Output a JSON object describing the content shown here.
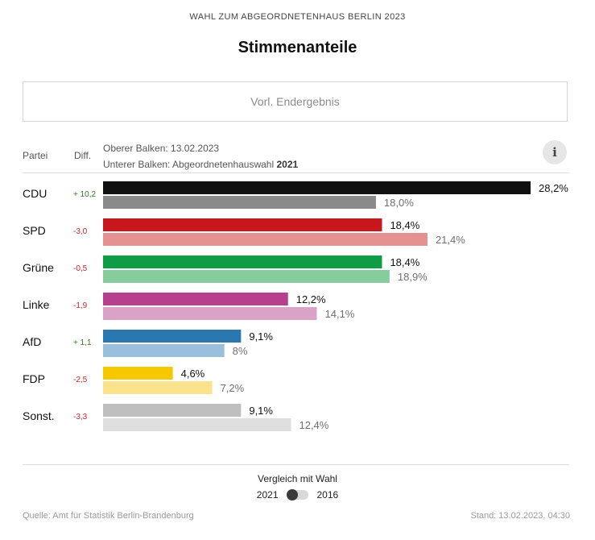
{
  "header": {
    "supertitle": "WAHL ZUM ABGEORDNETENHAUS BERLIN 2023",
    "title": "Stimmenanteile",
    "status": "Vorl. Endergebnis"
  },
  "columns": {
    "party": "Partei",
    "diff": "Diff."
  },
  "legend": {
    "upper": "Oberer Balken: 13.02.2023",
    "lower_prefix": "Unterer Balken: Abgeordnetenhauswahl ",
    "lower_year": "2021"
  },
  "info_label": "i",
  "colors": {
    "positive_diff": "#2e7d1e",
    "negative_diff": "#c62828"
  },
  "chart_data": {
    "type": "bar",
    "orientation": "horizontal",
    "title": "Stimmenanteile",
    "unit": "%",
    "categories": [
      "CDU",
      "SPD",
      "Grüne",
      "Linke",
      "AfD",
      "FDP",
      "Sonst."
    ],
    "series": [
      {
        "name": "13.02.2023",
        "values": [
          28.2,
          18.4,
          18.4,
          12.2,
          9.1,
          4.6,
          9.1
        ],
        "labels": [
          "28,2%",
          "18,4%",
          "18,4%",
          "12,2%",
          "9,1%",
          "4,6%",
          "9,1%"
        ],
        "colors": [
          "#111111",
          "#c8161d",
          "#0e9d45",
          "#b7408e",
          "#2b78b0",
          "#f5c800",
          "#bfbfbf"
        ]
      },
      {
        "name": "Abgeordnetenhauswahl 2021",
        "values": [
          18.0,
          21.4,
          18.9,
          14.1,
          8.0,
          7.2,
          12.4
        ],
        "labels": [
          "18,0%",
          "21,4%",
          "18,9%",
          "14,1%",
          "8%",
          "7,2%",
          "12,4%"
        ],
        "colors": [
          "#8a8a8a",
          "#e59191",
          "#86cc9d",
          "#dba2c8",
          "#9abfdd",
          "#fae38c",
          "#dedede"
        ]
      }
    ],
    "diff": [
      10.2,
      -3.0,
      -0.5,
      -1.9,
      1.1,
      -2.5,
      -3.3
    ],
    "diff_labels": [
      "+ 10,2",
      "-3,0",
      "-0,5",
      "-1,9",
      "+ 1,1",
      "-2,5",
      "-3,3"
    ],
    "xlim": [
      0,
      28.2
    ]
  },
  "comparison": {
    "title": "Vergleich mit Wahl",
    "option_left": "2021",
    "option_right": "2016"
  },
  "footer": {
    "source": "Quelle: Amt für Statistik Berlin-Brandenburg",
    "stand": "Stand: 13.02.2023, 04:30"
  }
}
